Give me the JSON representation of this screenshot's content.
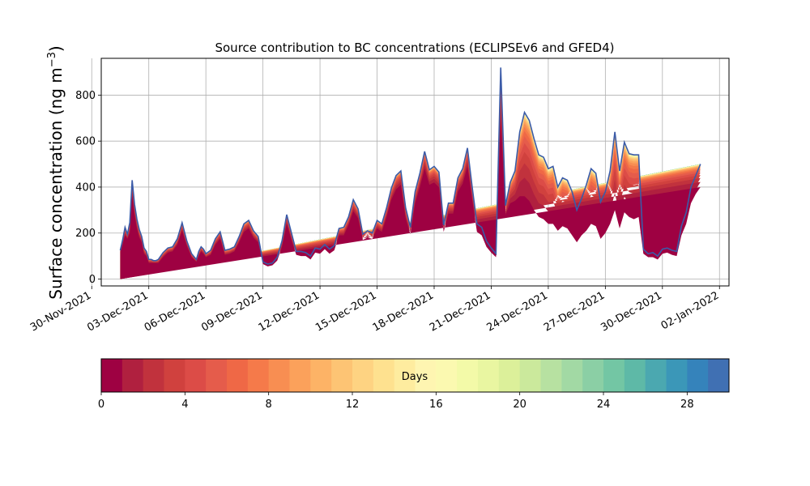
{
  "chart_data": [
    {
      "type": "area",
      "title": "Source contribution to BC concentrations (ECLIPSEv6 and GFED4)",
      "ylabel": "Surface concentration (ng m",
      "ylabel_sup": "−3",
      "ylabel_close": ")",
      "ylim": [
        -30,
        960
      ],
      "xlim": [
        "2021-11-30T12:00",
        "2022-01-02T12:00"
      ],
      "yticks": [
        0,
        200,
        400,
        600,
        800
      ],
      "xticks": [
        "2021-11-30",
        "2021-12-03",
        "2021-12-06",
        "2021-12-09",
        "2021-12-12",
        "2021-12-15",
        "2021-12-18",
        "2021-12-21",
        "2021-12-24",
        "2021-12-27",
        "2021-12-30",
        "2022-01-02"
      ],
      "xtick_labels": [
        "30-Nov-2021",
        "03-Dec-2021",
        "06-Dec-2021",
        "09-Dec-2021",
        "12-Dec-2021",
        "15-Dec-2021",
        "18-Dec-2021",
        "21-Dec-2021",
        "24-Dec-2021",
        "27-Dec-2021",
        "30-Dec-2021",
        "02-Jan-2022"
      ],
      "grid": true,
      "stack_layers_days": 30,
      "stack_colormap": "Spectral_r",
      "series": [
        {
          "x": [
            "2021-12-01T12:00",
            "2021-12-01T15:00",
            "2021-12-01T18:00",
            "2021-12-01T21:00",
            "2021-12-02T00:00",
            "2021-12-02T03:00",
            "2021-12-02T06:00",
            "2021-12-02T09:00",
            "2021-12-02T12:00",
            "2021-12-02T15:00",
            "2021-12-02T18:00",
            "2021-12-02T21:00",
            "2021-12-03T00:00",
            "2021-12-03T03:00",
            "2021-12-03T06:00",
            "2021-12-03T09:00",
            "2021-12-03T12:00",
            "2021-12-03T18:00",
            "2021-12-04T00:00",
            "2021-12-04T06:00",
            "2021-12-04T12:00",
            "2021-12-04T18:00",
            "2021-12-05T00:00",
            "2021-12-05T06:00",
            "2021-12-05T12:00",
            "2021-12-05T15:00",
            "2021-12-05T18:00",
            "2021-12-05T21:00",
            "2021-12-06T00:00",
            "2021-12-06T06:00",
            "2021-12-06T12:00",
            "2021-12-06T18:00",
            "2021-12-07T00:00",
            "2021-12-07T06:00",
            "2021-12-07T12:00",
            "2021-12-07T18:00",
            "2021-12-08T00:00",
            "2021-12-08T06:00",
            "2021-12-08T12:00",
            "2021-12-08T18:00",
            "2021-12-09T00:00",
            "2021-12-09T06:00",
            "2021-12-09T12:00",
            "2021-12-09T18:00",
            "2021-12-10T00:00",
            "2021-12-10T06:00",
            "2021-12-10T12:00",
            "2021-12-10T18:00",
            "2021-12-11T00:00",
            "2021-12-11T06:00",
            "2021-12-11T12:00",
            "2021-12-11T18:00",
            "2021-12-12T00:00",
            "2021-12-12T06:00",
            "2021-12-12T12:00",
            "2021-12-12T18:00",
            "2021-12-13T00:00",
            "2021-12-13T06:00",
            "2021-12-13T12:00",
            "2021-12-13T18:00",
            "2021-12-14T00:00",
            "2021-12-14T06:00",
            "2021-12-14T12:00",
            "2021-12-14T18:00",
            "2021-12-15T00:00",
            "2021-12-15T06:00",
            "2021-12-15T12:00",
            "2021-12-15T18:00",
            "2021-12-16T00:00",
            "2021-12-16T06:00",
            "2021-12-16T12:00",
            "2021-12-16T18:00",
            "2021-12-17T00:00",
            "2021-12-17T06:00",
            "2021-12-17T12:00",
            "2021-12-17T18:00",
            "2021-12-18T00:00",
            "2021-12-18T06:00",
            "2021-12-18T12:00",
            "2021-12-18T18:00",
            "2021-12-19T00:00",
            "2021-12-19T06:00",
            "2021-12-19T12:00",
            "2021-12-19T18:00",
            "2021-12-20T00:00",
            "2021-12-20T06:00",
            "2021-12-20T12:00",
            "2021-12-20T18:00",
            "2021-12-21T00:00",
            "2021-12-21T06:00",
            "2021-12-21T12:00",
            "2021-12-21T18:00",
            "2021-12-22T00:00",
            "2021-12-22T06:00",
            "2021-12-22T12:00",
            "2021-12-22T18:00",
            "2021-12-23T00:00",
            "2021-12-23T06:00",
            "2021-12-23T12:00",
            "2021-12-23T18:00",
            "2021-12-24T00:00",
            "2021-12-24T06:00",
            "2021-12-24T12:00",
            "2021-12-24T18:00",
            "2021-12-25T00:00",
            "2021-12-25T06:00",
            "2021-12-25T12:00",
            "2021-12-25T18:00",
            "2021-12-26T00:00",
            "2021-12-26T06:00",
            "2021-12-26T12:00",
            "2021-12-26T18:00",
            "2021-12-27T00:00",
            "2021-12-27T06:00",
            "2021-12-27T12:00",
            "2021-12-27T18:00",
            "2021-12-28T00:00",
            "2021-12-28T06:00",
            "2021-12-28T12:00",
            "2021-12-28T18:00",
            "2021-12-29T00:00",
            "2021-12-29T06:00",
            "2021-12-29T12:00",
            "2021-12-29T18:00",
            "2021-12-30T00:00",
            "2021-12-30T06:00",
            "2021-12-30T12:00",
            "2021-12-30T18:00",
            "2021-12-31T00:00",
            "2021-12-31T06:00",
            "2021-12-31T12:00",
            "2021-12-31T18:00",
            "2022-01-01T00:00",
            "2022-01-01T06:00",
            "2022-01-01T12:00"
          ],
          "total": [
            125,
            170,
            225,
            195,
            245,
            430,
            325,
            260,
            215,
            185,
            135,
            120,
            85,
            85,
            80,
            80,
            85,
            115,
            135,
            140,
            175,
            245,
            165,
            110,
            85,
            120,
            140,
            130,
            110,
            125,
            175,
            205,
            125,
            130,
            140,
            185,
            240,
            255,
            210,
            185,
            75,
            65,
            70,
            95,
            165,
            280,
            200,
            120,
            120,
            115,
            100,
            135,
            130,
            150,
            130,
            145,
            220,
            225,
            270,
            345,
            305,
            195,
            210,
            200,
            255,
            240,
            310,
            395,
            450,
            470,
            310,
            225,
            380,
            460,
            555,
            475,
            490,
            465,
            235,
            330,
            330,
            440,
            480,
            570,
            400,
            240,
            225,
            165,
            135,
            110,
            920,
            320,
            420,
            470,
            640,
            725,
            690,
            610,
            540,
            530,
            480,
            490,
            400,
            440,
            430,
            380,
            300,
            350,
            410,
            480,
            460,
            335,
            380,
            470,
            640,
            470,
            595,
            545,
            540,
            540,
            130,
            110,
            115,
            100,
            130,
            135,
            125,
            120,
            230,
            290,
            400,
            450,
            500
          ],
          "band0": [
            120,
            150,
            190,
            175,
            200,
            360,
            280,
            220,
            180,
            160,
            110,
            100,
            70,
            70,
            70,
            70,
            70,
            95,
            115,
            120,
            150,
            210,
            145,
            95,
            75,
            100,
            120,
            110,
            95,
            105,
            150,
            175,
            105,
            110,
            120,
            160,
            205,
            220,
            180,
            160,
            65,
            55,
            60,
            80,
            140,
            240,
            170,
            105,
            100,
            100,
            85,
            115,
            110,
            130,
            110,
            125,
            190,
            190,
            235,
            295,
            265,
            170,
            180,
            175,
            220,
            205,
            270,
            345,
            390,
            410,
            265,
            195,
            330,
            400,
            480,
            410,
            420,
            400,
            205,
            285,
            285,
            380,
            415,
            490,
            345,
            205,
            190,
            140,
            115,
            95,
            700,
            280,
            330,
            340,
            360,
            360,
            340,
            300,
            270,
            260,
            240,
            240,
            210,
            230,
            220,
            190,
            160,
            190,
            210,
            240,
            230,
            175,
            200,
            240,
            300,
            220,
            290,
            270,
            260,
            270,
            110,
            95,
            95,
            85,
            110,
            115,
            105,
            100,
            190,
            240,
            330,
            370,
            400
          ]
        }
      ],
      "colorbar": {
        "label": "Days",
        "ticks": [
          0,
          4,
          8,
          12,
          16,
          20,
          24,
          28
        ],
        "range": [
          0,
          30
        ],
        "n_bins": 30,
        "colors": [
          "#9e0142",
          "#b0203f",
          "#c1323d",
          "#d0413e",
          "#dc4c47",
          "#e55c4b",
          "#ef6846",
          "#f57a4a",
          "#f88e52",
          "#fba15b",
          "#fdb366",
          "#fdc474",
          "#fed382",
          "#fee18f",
          "#feec9f",
          "#fef5b1",
          "#fbf9b0",
          "#f3faa8",
          "#e9f6a1",
          "#dcf09a",
          "#cbe99c",
          "#b7e1a1",
          "#a2d9a4",
          "#8bcfa5",
          "#73c6a4",
          "#5eb9a7",
          "#4ba8b0",
          "#3b97b8",
          "#3583bb",
          "#4070b3"
        ]
      }
    }
  ]
}
